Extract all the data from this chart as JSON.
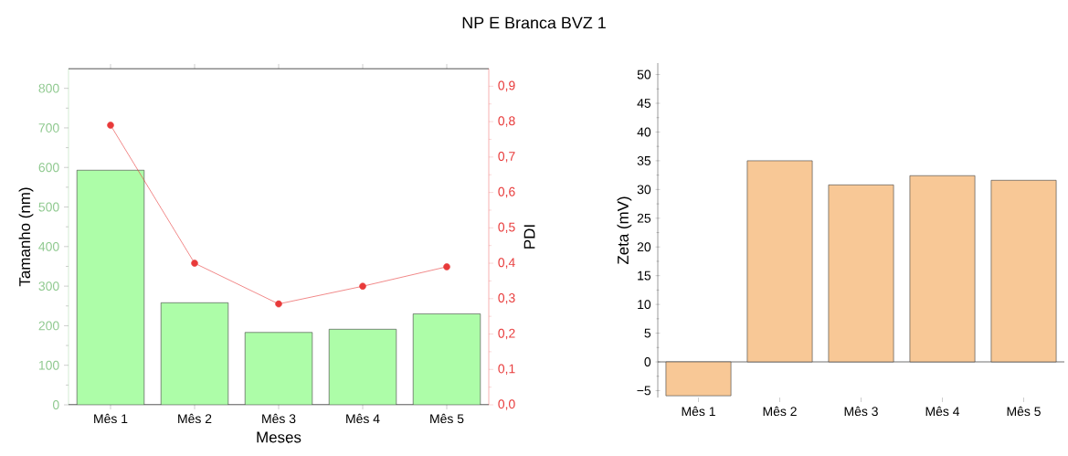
{
  "chart_data": [
    {
      "type": "bar",
      "title": "NP E Branca BVZ 1",
      "categories": [
        "Mês 1",
        "Mês 2",
        "Mês 3",
        "Mês 4",
        "Mês 5"
      ],
      "xlabel": "Meses",
      "ylabel": "Tamanho (nm)",
      "y2label": "PDI",
      "ylim": [
        0,
        850
      ],
      "yticks": [
        0,
        100,
        200,
        300,
        400,
        500,
        600,
        700,
        800
      ],
      "y2lim": [
        0,
        0.95
      ],
      "y2ticks": [
        {
          "value": 0,
          "label": "0,0"
        },
        {
          "value": 0.1,
          "label": "0,1"
        },
        {
          "value": 0.2,
          "label": "0,2"
        },
        {
          "value": 0.3,
          "label": "0,3"
        },
        {
          "value": 0.4,
          "label": "0,4"
        },
        {
          "value": 0.5,
          "label": "0,5"
        },
        {
          "value": 0.6,
          "label": "0,6"
        },
        {
          "value": 0.7,
          "label": "0,7"
        },
        {
          "value": 0.8,
          "label": "0,8"
        },
        {
          "value": 0.9,
          "label": "0,9"
        }
      ],
      "series": [
        {
          "type": "bar",
          "color": "#adfda8",
          "values": [
            593,
            258,
            183,
            191,
            230
          ]
        },
        {
          "type": "line",
          "axis": "y2",
          "color": "#e83a3a",
          "marker": "circle",
          "values": [
            0.79,
            0.4,
            0.285,
            0.335,
            0.39
          ]
        }
      ]
    },
    {
      "type": "bar",
      "categories": [
        "Mês 1",
        "Mês 2",
        "Mês 3",
        "Mês 4",
        "Mês 5"
      ],
      "ylabel": "Zeta (mV)",
      "ylim": [
        -6.2,
        52
      ],
      "yticks": [
        {
          "value": -5,
          "label": "−5"
        },
        0,
        5,
        10,
        15,
        20,
        25,
        30,
        35,
        40,
        45,
        50
      ],
      "color": "#f8c896",
      "values": [
        -5.9,
        35,
        30.8,
        32.4,
        31.6
      ]
    }
  ]
}
